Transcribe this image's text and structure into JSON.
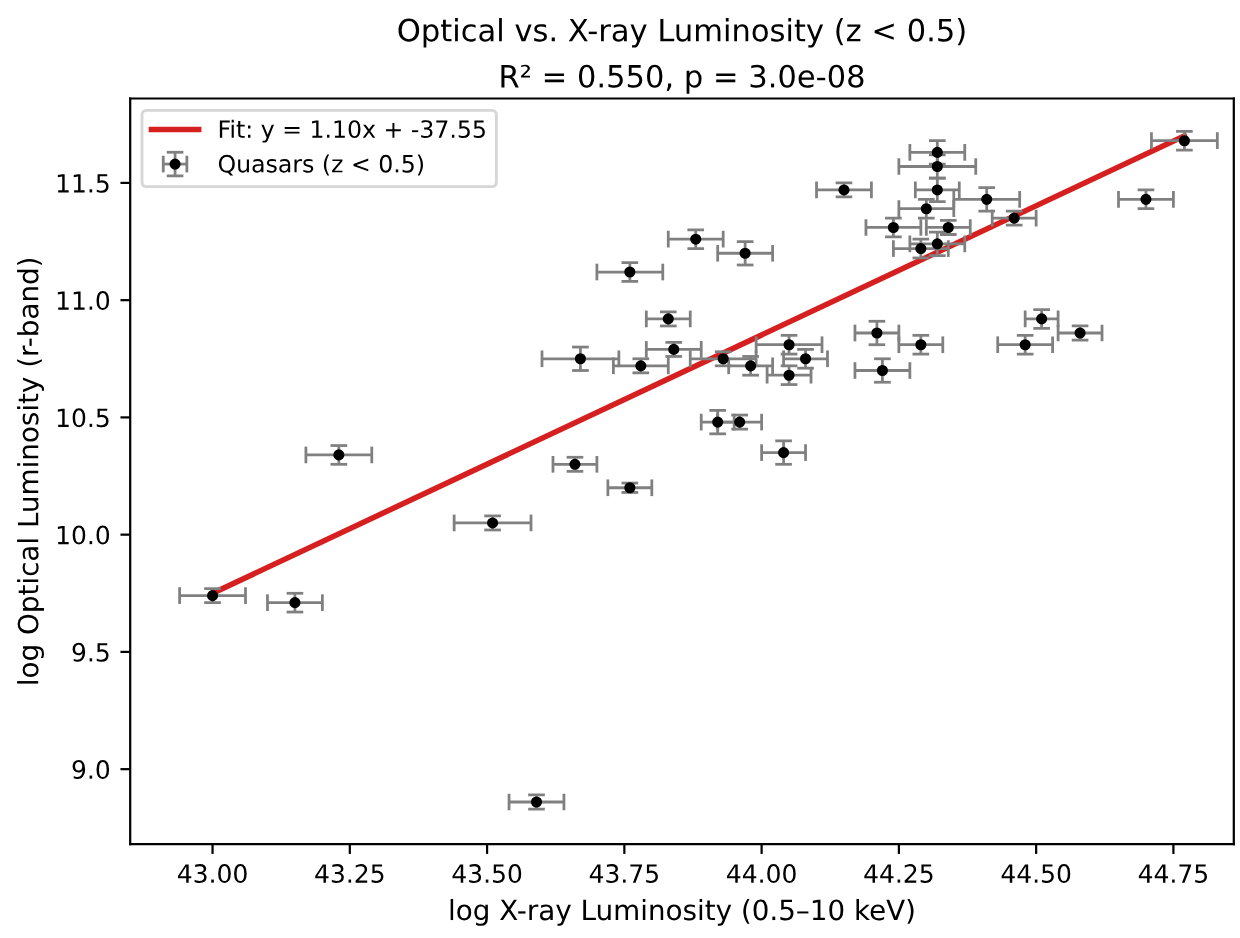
{
  "chart_data": {
    "type": "scatter",
    "title": "Optical vs. X-ray Luminosity (z < 0.5)",
    "subtitle": "R² = 0.550, p = 3.0e-08",
    "xlabel": "log X-ray Luminosity (0.5–10 keV)",
    "ylabel": "log Optical Luminosity (r-band)",
    "xlim": [
      42.85,
      44.86
    ],
    "ylim": [
      8.68,
      11.86
    ],
    "xticks": [
      {
        "value": 43.0,
        "label": "43.00"
      },
      {
        "value": 43.25,
        "label": "43.25"
      },
      {
        "value": 43.5,
        "label": "43.50"
      },
      {
        "value": 43.75,
        "label": "43.75"
      },
      {
        "value": 44.0,
        "label": "44.00"
      },
      {
        "value": 44.25,
        "label": "44.25"
      },
      {
        "value": 44.5,
        "label": "44.50"
      },
      {
        "value": 44.75,
        "label": "44.75"
      }
    ],
    "yticks": [
      {
        "value": 9.0,
        "label": "9.0"
      },
      {
        "value": 9.5,
        "label": "9.5"
      },
      {
        "value": 10.0,
        "label": "10.0"
      },
      {
        "value": 10.5,
        "label": "10.5"
      },
      {
        "value": 11.0,
        "label": "11.0"
      },
      {
        "value": 11.5,
        "label": "11.5"
      }
    ],
    "grid": false,
    "legend": "top left",
    "series": [
      {
        "name": "Quasars (z < 0.5)",
        "marker": "circle",
        "color": "#000000",
        "x": [
          43.0,
          43.15,
          43.23,
          43.51,
          43.59,
          43.66,
          43.76,
          43.67,
          43.78,
          43.76,
          43.83,
          43.84,
          43.93,
          43.88,
          43.97,
          44.15,
          44.32,
          44.32,
          44.32,
          44.3,
          44.24,
          44.34,
          44.29,
          44.32,
          44.41,
          44.46,
          44.7,
          44.77,
          44.05,
          43.98,
          44.08,
          44.05,
          44.21,
          44.29,
          44.22,
          44.51,
          44.48,
          44.58,
          43.92,
          43.96,
          44.04
        ],
        "values": [
          9.74,
          9.71,
          10.34,
          10.05,
          8.86,
          10.3,
          10.2,
          10.75,
          10.72,
          11.12,
          10.92,
          10.79,
          10.75,
          11.26,
          11.2,
          11.47,
          11.63,
          11.57,
          11.47,
          11.39,
          11.31,
          11.31,
          11.22,
          11.24,
          11.43,
          11.35,
          11.43,
          11.68,
          10.81,
          10.72,
          10.75,
          10.68,
          10.86,
          10.81,
          10.7,
          10.92,
          10.81,
          10.86,
          10.48,
          10.48,
          10.35
        ],
        "xerrors": [
          0.06,
          0.05,
          0.06,
          0.07,
          0.05,
          0.04,
          0.04,
          0.07,
          0.05,
          0.06,
          0.04,
          0.05,
          0.06,
          0.05,
          0.05,
          0.05,
          0.05,
          0.07,
          0.04,
          0.05,
          0.05,
          0.04,
          0.05,
          0.05,
          0.06,
          0.04,
          0.05,
          0.06,
          0.06,
          0.04,
          0.04,
          0.04,
          0.04,
          0.04,
          0.05,
          0.03,
          0.05,
          0.04,
          0.03,
          0.04,
          0.04
        ],
        "errors": [
          0.03,
          0.04,
          0.04,
          0.03,
          0.03,
          0.03,
          0.02,
          0.05,
          0.03,
          0.04,
          0.03,
          0.03,
          0.03,
          0.04,
          0.05,
          0.03,
          0.05,
          0.05,
          0.05,
          0.04,
          0.04,
          0.03,
          0.04,
          0.05,
          0.05,
          0.03,
          0.04,
          0.04,
          0.04,
          0.04,
          0.04,
          0.04,
          0.05,
          0.04,
          0.05,
          0.04,
          0.04,
          0.03,
          0.05,
          0.03,
          0.05
        ]
      },
      {
        "name": "Fit: y = 1.10x + -37.55",
        "type": "line",
        "color": "#d62020",
        "x": [
          43.0,
          44.77
        ],
        "values": [
          9.75,
          11.7
        ]
      }
    ]
  }
}
